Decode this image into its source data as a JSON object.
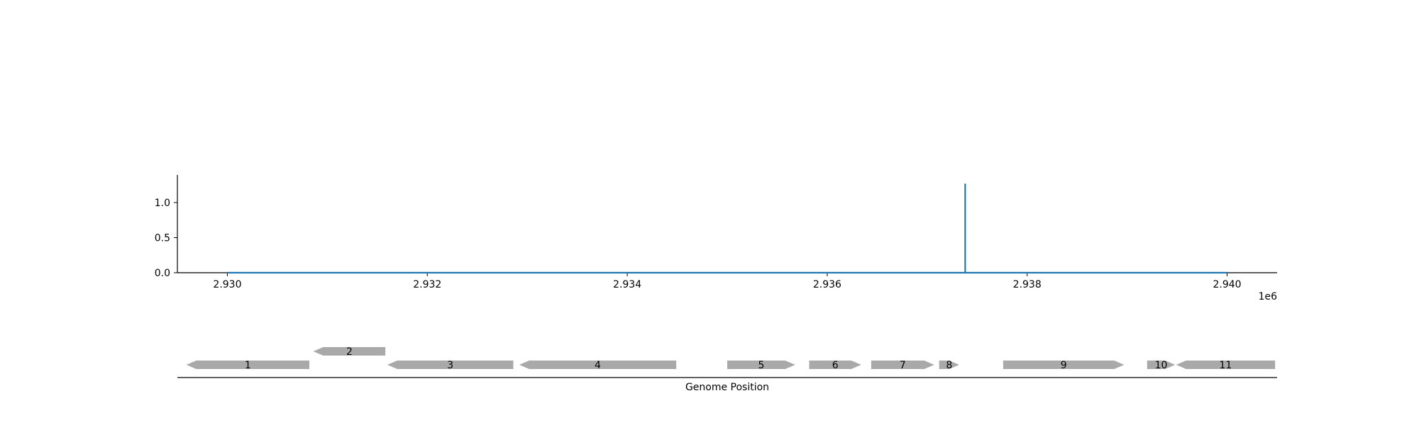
{
  "chart_data": {
    "type": "line",
    "title": "",
    "xlabel": "",
    "ylabel": "",
    "x_offset_label": "1e6",
    "xlim": [
      2929500,
      2940500
    ],
    "ylim": [
      0,
      1.4
    ],
    "x_ticks": [
      2930000,
      2932000,
      2934000,
      2936000,
      2938000,
      2940000
    ],
    "x_tick_labels": [
      "2.930",
      "2.932",
      "2.934",
      "2.936",
      "2.938",
      "2.940"
    ],
    "y_ticks": [
      0.0,
      0.5,
      1.0
    ],
    "y_tick_labels": [
      "0.0",
      "0.5",
      "1.0"
    ],
    "grid": false,
    "color": "#1f77b4",
    "series": [
      {
        "x": [
          2930000,
          2937380,
          2937380,
          2937380,
          2940000
        ],
        "values": [
          0,
          0,
          1.27,
          0,
          0
        ]
      }
    ]
  },
  "gene_track": {
    "xlabel": "Genome Position",
    "color": "#a9a9a9",
    "genes": [
      {
        "label": "1",
        "start": 2929590,
        "end": 2930820,
        "strand": "-",
        "row": 0
      },
      {
        "label": "2",
        "start": 2930860,
        "end": 2931580,
        "strand": "-",
        "row": 1
      },
      {
        "label": "3",
        "start": 2931600,
        "end": 2932860,
        "strand": "-",
        "row": 0
      },
      {
        "label": "4",
        "start": 2932920,
        "end": 2934490,
        "strand": "-",
        "row": 0
      },
      {
        "label": "5",
        "start": 2935000,
        "end": 2935680,
        "strand": "+",
        "row": 0
      },
      {
        "label": "6",
        "start": 2935820,
        "end": 2936340,
        "strand": "+",
        "row": 0
      },
      {
        "label": "7",
        "start": 2936440,
        "end": 2937070,
        "strand": "+",
        "row": 0
      },
      {
        "label": "8",
        "start": 2937120,
        "end": 2937320,
        "strand": "+",
        "row": 0
      },
      {
        "label": "9",
        "start": 2937760,
        "end": 2938970,
        "strand": "+",
        "row": 0
      },
      {
        "label": "10",
        "start": 2939200,
        "end": 2939480,
        "strand": "+",
        "row": 0
      },
      {
        "label": "11",
        "start": 2939490,
        "end": 2940480,
        "strand": "-",
        "row": 0
      }
    ]
  }
}
